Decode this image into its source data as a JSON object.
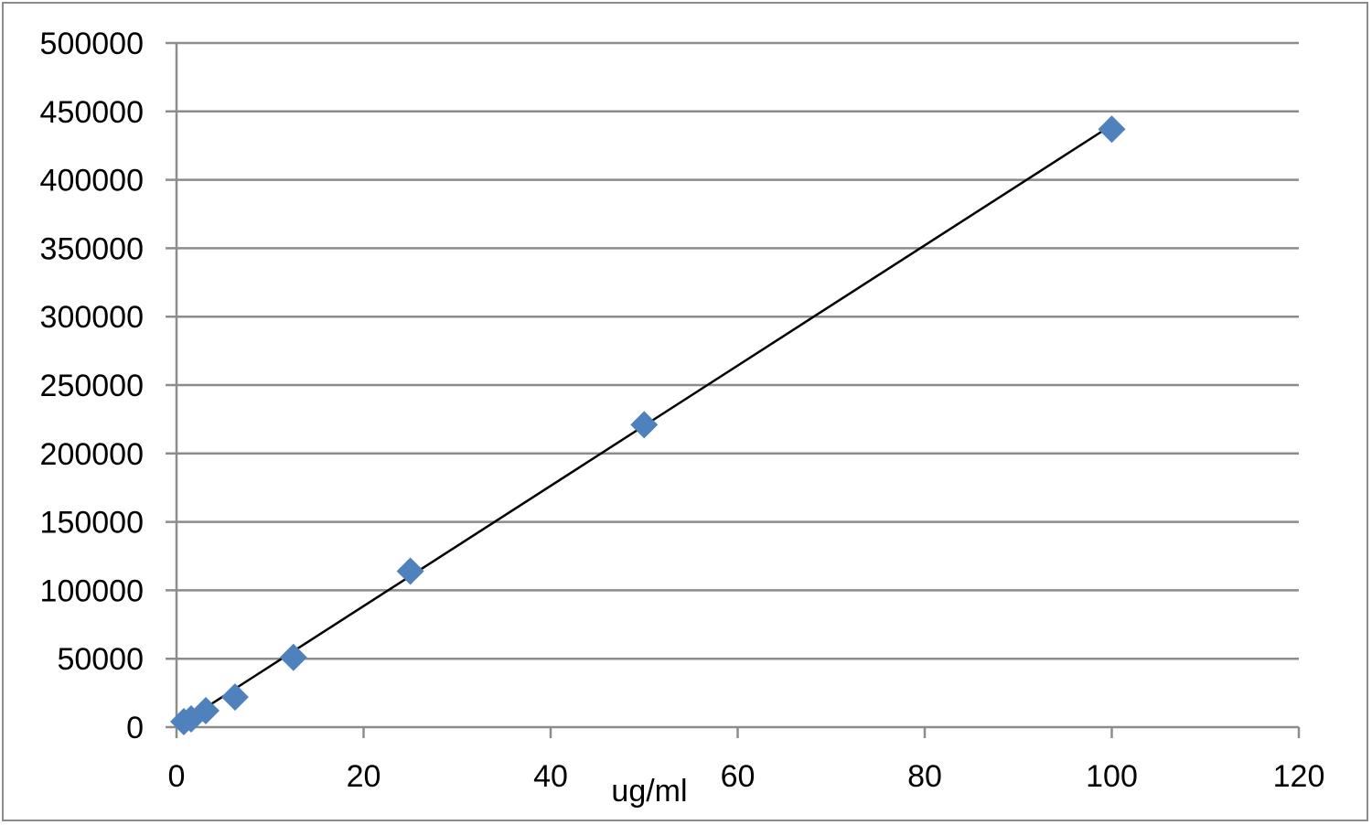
{
  "chart_data": {
    "type": "scatter",
    "title": "",
    "xlabel": "ug/ml",
    "ylabel": "",
    "xlim": [
      0,
      120
    ],
    "ylim": [
      0,
      500000
    ],
    "xticks": [
      0,
      20,
      40,
      60,
      80,
      100,
      120
    ],
    "yticks": [
      0,
      50000,
      100000,
      150000,
      200000,
      250000,
      300000,
      350000,
      400000,
      450000,
      500000
    ],
    "grid": {
      "horizontal": true,
      "vertical": false
    },
    "legend": "none",
    "series": [
      {
        "marker": "diamond",
        "color": "#4f81bd",
        "x": [
          0.78,
          1.56,
          3.13,
          6.25,
          12.5,
          25,
          50,
          100
        ],
        "y": [
          4000,
          6000,
          12000,
          22000,
          51000,
          114000,
          221000,
          437000
        ]
      }
    ],
    "trendline": {
      "type": "linear",
      "color": "#000000",
      "x": [
        0.78,
        100
      ],
      "y": [
        4000,
        440000
      ]
    }
  }
}
